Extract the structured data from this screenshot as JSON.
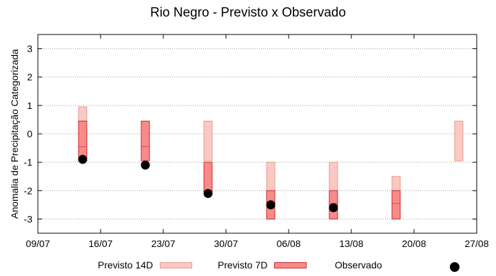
{
  "chart_data": {
    "type": "range-bar + scatter",
    "title": "Rio Negro - Previsto x Observado",
    "ylabel": "Anomalia de Precipitação Categorizada",
    "xlabel": "",
    "ylim": [
      -3.5,
      3.5
    ],
    "yticks": [
      "-3",
      "-2",
      "-1",
      "0",
      "1",
      "2",
      "3"
    ],
    "ytick_values": [
      -3,
      -2,
      -1,
      0,
      1,
      2,
      3
    ],
    "x_range": [
      "09/07",
      "27/08"
    ],
    "xticks": [
      "09/07",
      "16/07",
      "23/07",
      "30/07",
      "06/08",
      "13/08",
      "20/08",
      "27/08"
    ],
    "grid": "horizontal dotted",
    "legend_position": "bottom",
    "series": [
      {
        "name": "Previsto 14D",
        "color": "#f9c9c3",
        "edge_color": "#e89a92",
        "ranges": [
          {
            "date": "14/07",
            "low": -0.95,
            "high": 0.95
          },
          {
            "date": "28/07",
            "low": -0.95,
            "high": 0.45
          },
          {
            "date": "04/08",
            "low": -3.0,
            "high": -1.0
          },
          {
            "date": "11/08",
            "low": -3.0,
            "high": -1.0
          },
          {
            "date": "18/08",
            "low": -3.0,
            "high": -1.5
          },
          {
            "date": "25/08",
            "low": -0.95,
            "high": 0.45
          }
        ]
      },
      {
        "name": "Previsto 7D",
        "color": "#f98a8a",
        "edge_color": "#c82828",
        "ranges": [
          {
            "date": "14/07",
            "low": -0.95,
            "high": 0.45,
            "mid": -0.45
          },
          {
            "date": "21/07",
            "low": -0.95,
            "high": 0.45,
            "mid": -0.45
          },
          {
            "date": "28/07",
            "low": -2.1,
            "high": -1.0
          },
          {
            "date": "04/08",
            "low": -3.0,
            "high": -2.0,
            "mid": -2.45
          },
          {
            "date": "11/08",
            "low": -3.0,
            "high": -2.0,
            "mid": -2.45
          },
          {
            "date": "18/08",
            "low": -3.0,
            "high": -2.0,
            "mid": -2.45
          }
        ]
      },
      {
        "name": "Observado",
        "color": "#000000",
        "points": [
          {
            "date": "14/07",
            "value": -0.9
          },
          {
            "date": "21/07",
            "value": -1.1
          },
          {
            "date": "28/07",
            "value": -2.1
          },
          {
            "date": "04/08",
            "value": -2.5
          },
          {
            "date": "11/08",
            "value": -2.6
          }
        ]
      }
    ]
  },
  "legend": {
    "previsto14": "Previsto 14D",
    "previsto7": "Previsto 7D",
    "observado": "Observado"
  }
}
